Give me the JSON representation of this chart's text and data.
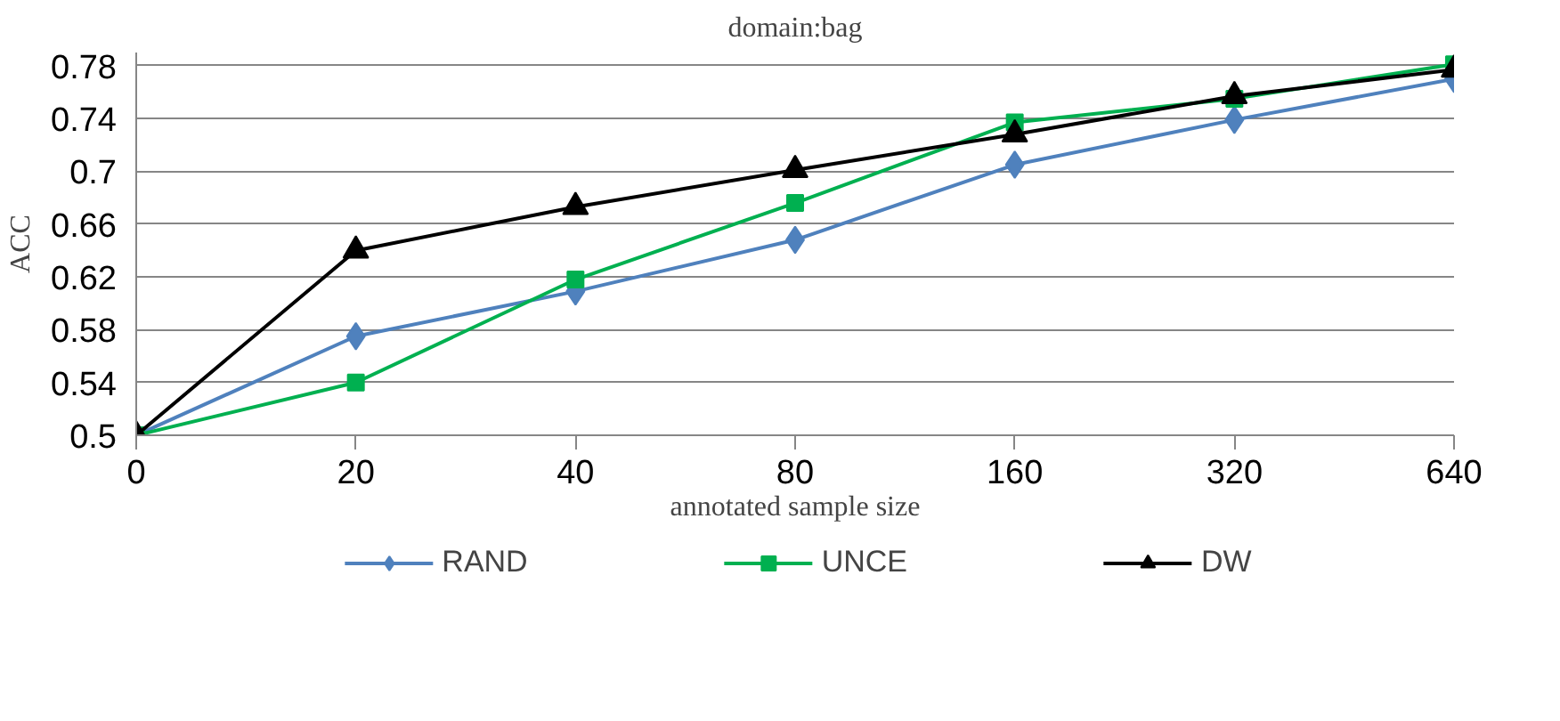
{
  "chart_data": {
    "type": "line",
    "title": "domain:bag",
    "xlabel": "annotated sample size",
    "ylabel": "ACC",
    "categories": [
      "0",
      "20",
      "40",
      "80",
      "160",
      "320",
      "640"
    ],
    "series": [
      {
        "name": "RAND",
        "color": "#4f81bd",
        "marker": "diamond",
        "values": [
          0.5,
          0.575,
          0.609,
          0.648,
          0.705,
          0.739,
          0.77
        ]
      },
      {
        "name": "UNCE",
        "color": "#00b050",
        "marker": "square",
        "values": [
          0.5,
          0.54,
          0.618,
          0.676,
          0.737,
          0.755,
          0.781
        ]
      },
      {
        "name": "DW",
        "color": "#000000",
        "marker": "triangle",
        "values": [
          0.5,
          0.64,
          0.673,
          0.701,
          0.728,
          0.757,
          0.777
        ]
      }
    ],
    "ylim": [
      0.5,
      0.79
    ],
    "yticks": [
      {
        "value": 0.5,
        "label": "0.5"
      },
      0.54,
      0.58,
      0.62,
      0.66,
      {
        "value": 0.7,
        "label": "0.7"
      },
      0.74,
      0.78
    ],
    "grid": "y",
    "legend": "bottom"
  }
}
